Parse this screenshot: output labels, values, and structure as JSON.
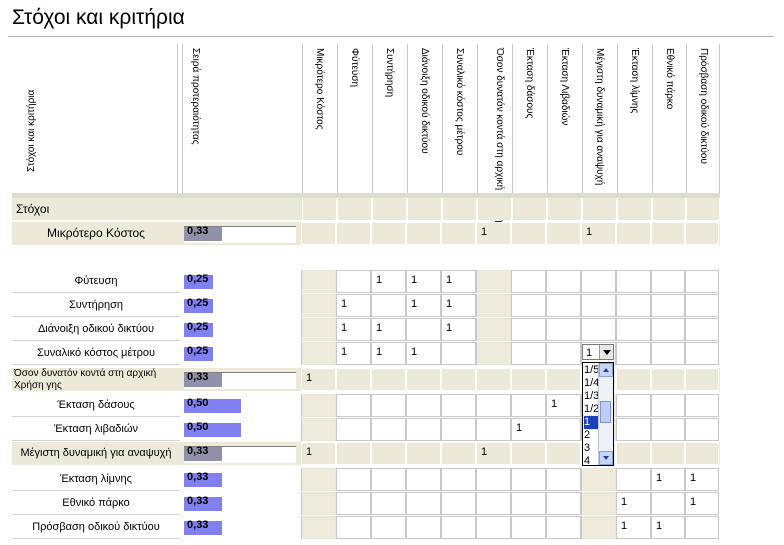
{
  "title": "Στόχοι και κριτήρια",
  "header": {
    "row_label_column": "Στόχοι και κριτήρια",
    "priority_column": "Σειρά προτεραιότητας",
    "columns": [
      "Μικρότερο Κόστος",
      "Φύτευση",
      "Συντήρηση",
      "Διάνοιξη οδικού δικτύου",
      "Συναλικό κόστος μέτρου",
      "Όσον δυνατόν κοντά στη αρχική Χρήση γης",
      "Έκταση δάσους",
      "Έκταση Λιβαδιών",
      "Μέγιστη δυναμική για αναψυχή",
      "Έκταση λίμνης",
      "Εθνικό πάρκο",
      "Πρόσβαση οδικού δικτύου"
    ]
  },
  "section_label": "Στόχοι",
  "rows": [
    {
      "label": "Μικρότερο Κόστος",
      "kind": "goal",
      "priority": "0,33",
      "level": 0.33,
      "marks": [
        "",
        "",
        "",
        "",
        "",
        "1",
        "",
        "",
        "1",
        "",
        "",
        ""
      ]
    },
    {
      "label": "Φύτευση",
      "kind": "crit",
      "priority": "0,25",
      "level": 0.25,
      "marks": [
        "",
        "",
        "1",
        "1",
        "1",
        "",
        "",
        "",
        "",
        "",
        "",
        ""
      ]
    },
    {
      "label": "Συντήρηση",
      "kind": "crit",
      "priority": "0,25",
      "level": 0.25,
      "marks": [
        "",
        "1",
        "",
        "1",
        "1",
        "",
        "",
        "",
        "",
        "",
        "",
        ""
      ]
    },
    {
      "label": "Διάνοιξη οδικού δικτύου",
      "kind": "crit",
      "priority": "0,25",
      "level": 0.25,
      "marks": [
        "",
        "1",
        "1",
        "",
        "1",
        "",
        "",
        "",
        "",
        "",
        "",
        ""
      ]
    },
    {
      "label": "Συναλικό κόστος μέτρου",
      "kind": "crit",
      "priority": "0,25",
      "level": 0.25,
      "marks": [
        "",
        "1",
        "1",
        "1",
        "",
        "",
        "",
        "",
        "",
        "",
        "",
        ""
      ]
    },
    {
      "label": "Όσον δυνατόν κοντά στη αρχική Χρήση γης",
      "kind": "goal",
      "priority": "0,33",
      "level": 0.33,
      "marks": [
        "1",
        "",
        "",
        "",
        "",
        "",
        "",
        "",
        "",
        "",
        "",
        ""
      ]
    },
    {
      "label": "Έκταση δάσους",
      "kind": "crit",
      "priority": "0,50",
      "level": 0.5,
      "marks": [
        "",
        "",
        "",
        "",
        "",
        "",
        "",
        "1",
        "",
        "",
        "",
        ""
      ]
    },
    {
      "label": "Έκταση λιβαδιών",
      "kind": "crit",
      "priority": "0,50",
      "level": 0.5,
      "marks": [
        "",
        "",
        "",
        "",
        "",
        "",
        "1",
        "",
        "",
        "",
        "",
        ""
      ]
    },
    {
      "label": "Μέγιστη δυναμική για αναψυχή",
      "kind": "goal",
      "priority": "0,33",
      "level": 0.33,
      "marks": [
        "1",
        "",
        "",
        "",
        "",
        "1",
        "",
        "",
        "",
        "",
        "",
        ""
      ]
    },
    {
      "label": "Έκταση λίμνης",
      "kind": "crit",
      "priority": "0,33",
      "level": 0.33,
      "marks": [
        "",
        "",
        "",
        "",
        "",
        "",
        "",
        "",
        "",
        "",
        "1",
        "1"
      ]
    },
    {
      "label": "Εθνικό πάρκο",
      "kind": "crit",
      "priority": "0,33",
      "level": 0.33,
      "marks": [
        "",
        "",
        "",
        "",
        "",
        "",
        "",
        "",
        "",
        "1",
        "",
        "1"
      ]
    },
    {
      "label": "Πρόσβαση οδικού δικτύου",
      "kind": "crit",
      "priority": "0,33",
      "level": 0.33,
      "marks": [
        "",
        "",
        "",
        "",
        "",
        "",
        "",
        "",
        "",
        "1",
        "1",
        ""
      ]
    }
  ],
  "dropdown": {
    "value": "1",
    "options": [
      "1/5",
      "1/4",
      "1/3",
      "1/2",
      "1",
      "2",
      "3",
      "4"
    ],
    "selected": "1"
  },
  "colors": {
    "goal_row": "#ece9d8",
    "bar": "#8080f0",
    "grid_line": "#c8c8c8",
    "header_bar": "#e0dccc"
  }
}
